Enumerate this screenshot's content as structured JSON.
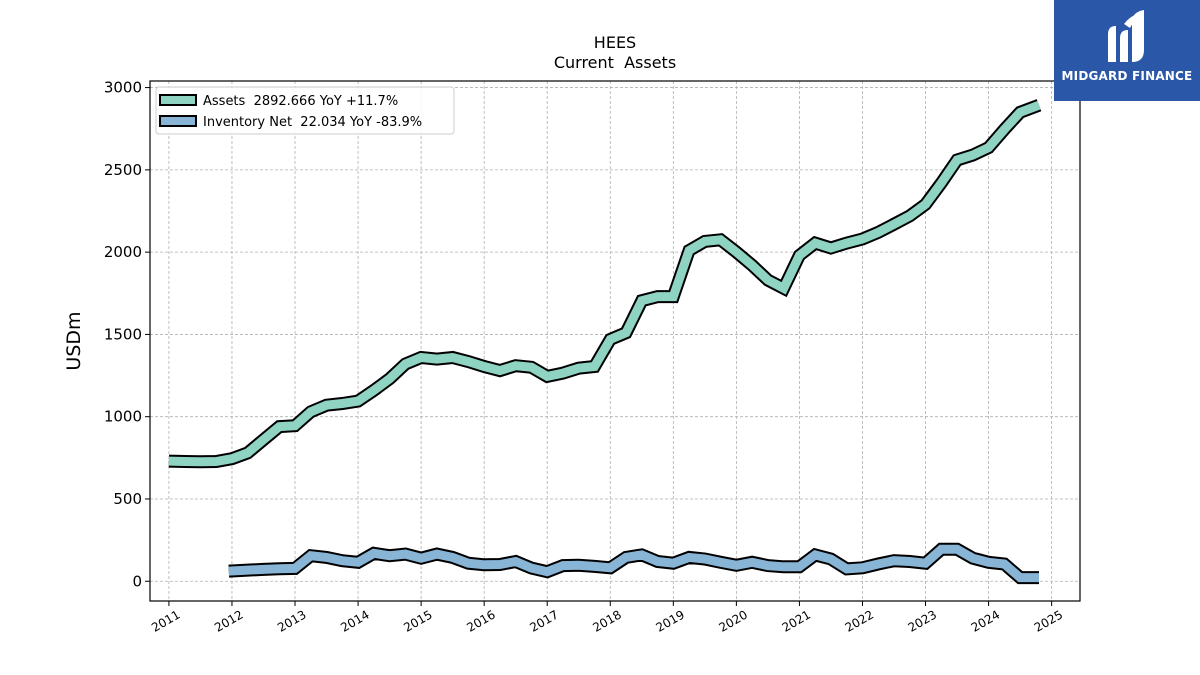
{
  "brand": {
    "name": "MIDGARD FINANCE",
    "bg_color": "#2b57a8",
    "icon": "midgard-logo-icon"
  },
  "chart_data": {
    "type": "line",
    "title": "HEES",
    "subtitle": "Current  Assets",
    "ylabel": "USDm",
    "xlabel": "",
    "xlim": [
      2010.7,
      2025.45
    ],
    "ylim": [
      -120,
      3040
    ],
    "grid": true,
    "legend_position": "top-left",
    "x_ticks": [
      "2011",
      "2012",
      "2013",
      "2014",
      "2015",
      "2016",
      "2017",
      "2018",
      "2019",
      "2020",
      "2021",
      "2022",
      "2023",
      "2024",
      "2025"
    ],
    "y_ticks": [
      "0",
      "500",
      "1000",
      "1500",
      "2000",
      "2500",
      "3000"
    ],
    "series": [
      {
        "name": "Assets",
        "legend_label": "Assets  2892.666 YoY +11.7%",
        "color": "#8fd3c3",
        "x": [
          2011.0,
          2011.25,
          2011.5,
          2011.75,
          2012.0,
          2012.25,
          2012.5,
          2012.75,
          2013.0,
          2013.25,
          2013.5,
          2013.75,
          2014.0,
          2014.25,
          2014.5,
          2014.75,
          2015.0,
          2015.25,
          2015.5,
          2015.75,
          2016.0,
          2016.25,
          2016.5,
          2016.75,
          2017.0,
          2017.25,
          2017.5,
          2017.75,
          2018.0,
          2018.25,
          2018.5,
          2018.75,
          2019.0,
          2019.25,
          2019.5,
          2019.75,
          2020.0,
          2020.25,
          2020.5,
          2020.75,
          2021.0,
          2021.25,
          2021.5,
          2021.75,
          2022.0,
          2022.25,
          2022.5,
          2022.75,
          2023.0,
          2023.25,
          2023.5,
          2023.75,
          2024.0,
          2024.25,
          2024.5,
          2024.8
        ],
        "values": [
          730,
          728,
          726,
          728,
          745,
          780,
          860,
          940,
          945,
          1030,
          1070,
          1080,
          1095,
          1160,
          1230,
          1320,
          1360,
          1350,
          1360,
          1335,
          1305,
          1280,
          1310,
          1300,
          1245,
          1265,
          1295,
          1305,
          1470,
          1510,
          1705,
          1730,
          1730,
          2010,
          2065,
          2075,
          2000,
          1920,
          1830,
          1780,
          1980,
          2055,
          2025,
          2055,
          2080,
          2120,
          2170,
          2220,
          2290,
          2420,
          2560,
          2590,
          2635,
          2745,
          2850,
          2893
        ]
      },
      {
        "name": "Inventory Net",
        "legend_label": "Inventory Net  22.034 YoY -83.9%",
        "color": "#88b4d6",
        "x": [
          2011.95,
          2012.25,
          2012.5,
          2012.75,
          2013.0,
          2013.25,
          2013.5,
          2013.75,
          2014.0,
          2014.25,
          2014.5,
          2014.75,
          2015.0,
          2015.25,
          2015.5,
          2015.75,
          2016.0,
          2016.25,
          2016.5,
          2016.75,
          2017.0,
          2017.25,
          2017.5,
          2017.75,
          2018.0,
          2018.25,
          2018.5,
          2018.75,
          2019.0,
          2019.25,
          2019.5,
          2019.75,
          2020.0,
          2020.25,
          2020.5,
          2020.75,
          2021.0,
          2021.25,
          2021.5,
          2021.75,
          2022.0,
          2022.25,
          2022.5,
          2022.75,
          2023.0,
          2023.25,
          2023.5,
          2023.75,
          2024.0,
          2024.25,
          2024.5,
          2024.8
        ],
        "values": [
          62,
          68,
          72,
          76,
          78,
          155,
          145,
          125,
          115,
          170,
          155,
          165,
          140,
          165,
          145,
          110,
          100,
          102,
          120,
          80,
          58,
          95,
          97,
          90,
          82,
          145,
          160,
          120,
          110,
          145,
          135,
          115,
          97,
          115,
          95,
          88,
          88,
          160,
          135,
          75,
          82,
          105,
          125,
          120,
          110,
          195,
          195,
          140,
          115,
          105,
          22,
          22
        ]
      }
    ]
  }
}
